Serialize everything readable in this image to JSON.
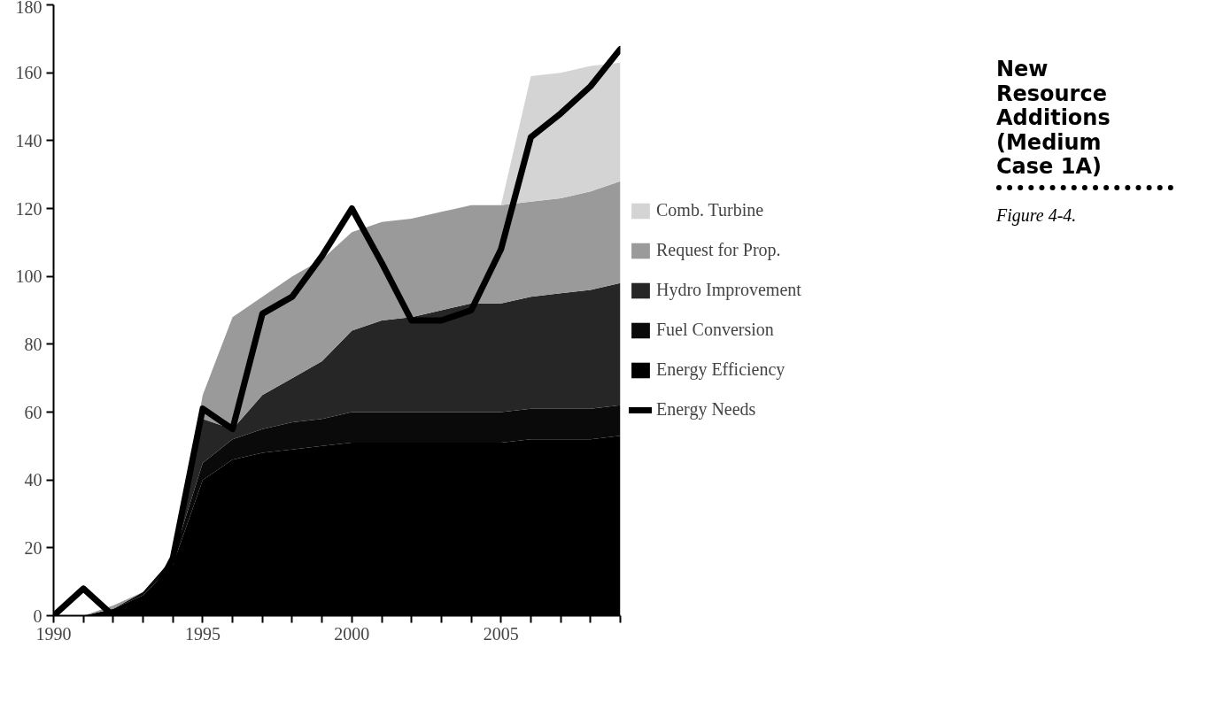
{
  "chart_data": {
    "type": "area",
    "stacked": true,
    "title": "New Resource Additions (Medium Case 1A)",
    "annotations": [
      "Figure 4-4."
    ],
    "x": [
      1990,
      1991,
      1992,
      1993,
      1994,
      1995,
      1996,
      1997,
      1998,
      1999,
      2000,
      2001,
      2002,
      2003,
      2004,
      2005,
      2006,
      2007,
      2008,
      2009
    ],
    "series": [
      {
        "name": "Energy Efficiency",
        "color": "#000000",
        "values": [
          0,
          0,
          2,
          6,
          15,
          40,
          46,
          48,
          49,
          50,
          51,
          51,
          51,
          51,
          51,
          51,
          52,
          52,
          52,
          53
        ]
      },
      {
        "name": "Fuel Conversion",
        "color": "#0a0a0a",
        "values": [
          0,
          0,
          0,
          1,
          2,
          5,
          6,
          7,
          8,
          8,
          9,
          9,
          9,
          9,
          9,
          9,
          9,
          9,
          9,
          9
        ]
      },
      {
        "name": "Hydro Improvement",
        "color": "#262626",
        "values": [
          0,
          0,
          0,
          0,
          0,
          13,
          3,
          10,
          13,
          17,
          24,
          27,
          28,
          30,
          32,
          32,
          33,
          34,
          35,
          36
        ]
      },
      {
        "name": "Request for Prop.",
        "color": "#9a9a9a",
        "values": [
          0,
          0,
          1,
          0,
          0,
          7,
          33,
          29,
          30,
          30,
          29,
          29,
          29,
          29,
          29,
          29,
          28,
          28,
          29,
          30
        ]
      },
      {
        "name": "Comb. Turbine",
        "color": "#d4d4d4",
        "values": [
          0,
          0,
          0,
          0,
          0,
          0,
          0,
          0,
          0,
          0,
          0,
          0,
          0,
          0,
          0,
          0,
          37,
          37,
          37,
          35
        ]
      },
      {
        "name": "Energy Needs",
        "type": "line",
        "color": "#000000",
        "values": [
          0,
          8,
          0,
          0,
          17,
          61,
          55,
          89,
          94,
          106,
          120,
          104,
          87,
          87,
          90,
          108,
          141,
          148,
          156,
          167
        ]
      }
    ],
    "xlim": [
      1990,
      2009
    ],
    "ylim": [
      0,
      180
    ],
    "xticks": [
      1990,
      {
        "value": 1991,
        "label": null
      },
      {
        "value": 1992,
        "label": null
      },
      {
        "value": 1993,
        "label": null
      },
      {
        "value": 1994,
        "label": null
      },
      1995,
      {
        "value": 1996,
        "label": null
      },
      {
        "value": 1997,
        "label": null
      },
      {
        "value": 1998,
        "label": null
      },
      {
        "value": 1999,
        "label": null
      },
      2000,
      {
        "value": 2001,
        "label": null
      },
      {
        "value": 2002,
        "label": null
      },
      {
        "value": 2003,
        "label": null
      },
      {
        "value": 2004,
        "label": null
      },
      2005,
      {
        "value": 2006,
        "label": null
      },
      {
        "value": 2007,
        "label": null
      },
      {
        "value": 2008,
        "label": null
      },
      {
        "value": 2009,
        "label": null
      }
    ],
    "yticks": [
      0,
      20,
      40,
      60,
      80,
      100,
      120,
      140,
      160,
      180
    ],
    "legend": "right",
    "grid": false
  }
}
